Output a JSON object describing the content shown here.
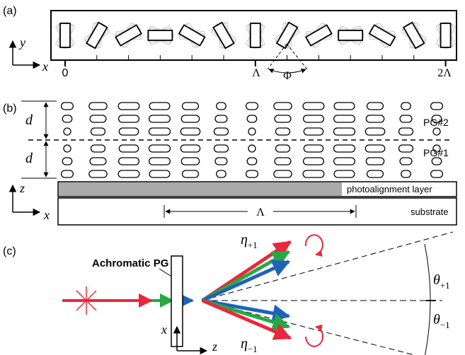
{
  "panels": [
    {
      "label": "(a)",
      "axes": {
        "vertical": "y",
        "horizontal": "x"
      },
      "ticks": [
        "0",
        "Λ",
        "2Λ"
      ],
      "angle": "Φ"
    },
    {
      "label": "(b)",
      "thickness": [
        "d",
        "d"
      ],
      "layers": [
        "PG#2",
        "PG#1"
      ],
      "axes": {
        "vertical": "z",
        "horizontal": "x"
      },
      "photoalignment": "photoalignment layer",
      "substrate": "substrate",
      "period": "Λ"
    },
    {
      "label": "(c)",
      "element": "Achromatic PG",
      "orders": [
        {
          "efficiency": "η",
          "angle": "θ",
          "order": "+1"
        },
        {
          "efficiency": "η",
          "angle": "θ",
          "order": "−1"
        }
      ],
      "axes": {
        "vertical": "x",
        "horizontal": "z"
      }
    }
  ]
}
